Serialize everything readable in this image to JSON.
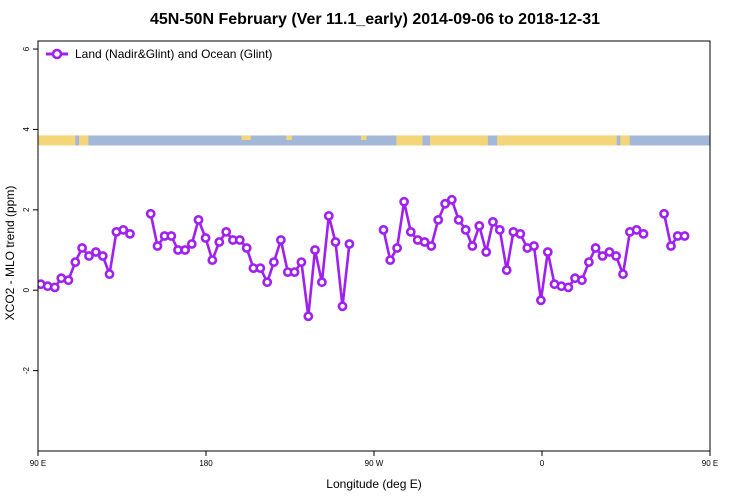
{
  "chart_data": {
    "type": "line",
    "title": "45N-50N February (Ver 11.1_early)   2014-09-06 to 2018-12-31",
    "xlabel": "Longitude (deg E)",
    "ylabel": "XCO2 - MLO trend (ppm)",
    "xlim": [
      90,
      450
    ],
    "ylim": [
      -4,
      6.2
    ],
    "x_ticks": [
      {
        "value": 90,
        "label": "90 E"
      },
      {
        "value": 180,
        "label": "180"
      },
      {
        "value": 270,
        "label": "90 W"
      },
      {
        "value": 360,
        "label": "0"
      },
      {
        "value": 450,
        "label": "90 E"
      },
      {
        "value": 540,
        "label": "180"
      }
    ],
    "y_ticks": [
      {
        "value": -2,
        "label": "-2"
      },
      {
        "value": 0,
        "label": "0"
      },
      {
        "value": 2,
        "label": "2"
      },
      {
        "value": 4,
        "label": "4"
      },
      {
        "value": 6,
        "label": "6"
      }
    ],
    "grid": false,
    "legend_position": "top-left",
    "landmask_band": {
      "ymin": 3.6,
      "ymax": 3.85,
      "land_color": "#F5D57A",
      "ocean_color": "#A3B7D9"
    },
    "series": [
      {
        "name": "Land (Nadir&Glint) and Ocean (Glint)",
        "color": "#A020F0",
        "points": [
          [
            91.5,
            0.15
          ],
          [
            95.2,
            0.1
          ],
          [
            99,
            0.07
          ],
          [
            102.5,
            0.3
          ],
          [
            106.3,
            0.25
          ],
          [
            110,
            0.7
          ],
          [
            113.6,
            1.05
          ],
          [
            117.3,
            0.85
          ],
          [
            121,
            0.95
          ],
          [
            124.7,
            0.85
          ],
          [
            128.3,
            0.4
          ],
          [
            132,
            1.45
          ],
          [
            135.7,
            1.5
          ],
          [
            139.3,
            1.4
          ],
          null,
          [
            150.4,
            1.9
          ],
          [
            154,
            1.1
          ],
          [
            157.8,
            1.35
          ],
          [
            161.4,
            1.35
          ],
          [
            165,
            1.0
          ],
          [
            168.8,
            1.0
          ],
          [
            172.4,
            1.15
          ],
          [
            176,
            1.75
          ],
          [
            179.8,
            1.3
          ],
          [
            183.4,
            0.75
          ],
          [
            187.1,
            1.2
          ],
          [
            190.8,
            1.45
          ],
          [
            194.4,
            1.25
          ],
          [
            198.1,
            1.25
          ],
          [
            201.8,
            1.05
          ],
          [
            205.4,
            0.55
          ],
          [
            209.1,
            0.55
          ],
          [
            212.8,
            0.2
          ],
          [
            216.4,
            0.7
          ],
          [
            220.1,
            1.25
          ],
          [
            223.8,
            0.45
          ],
          [
            227.4,
            0.45
          ],
          [
            231.1,
            0.7
          ],
          [
            234.8,
            -0.65
          ],
          [
            238.4,
            1.0
          ],
          [
            242.1,
            0.2
          ],
          [
            245.8,
            1.85
          ],
          [
            249.4,
            1.2
          ],
          [
            253.1,
            -0.4
          ],
          [
            256.8,
            1.15
          ],
          null,
          [
            275.1,
            1.5
          ],
          [
            278.7,
            0.75
          ],
          [
            282.4,
            1.05
          ],
          [
            286.1,
            2.2
          ],
          [
            289.7,
            1.45
          ],
          [
            293.4,
            1.25
          ],
          [
            297.1,
            1.2
          ],
          [
            300.7,
            1.1
          ],
          [
            304.4,
            1.75
          ],
          [
            308.1,
            2.15
          ],
          [
            311.7,
            2.25
          ],
          [
            315.4,
            1.75
          ],
          [
            319.1,
            1.5
          ],
          [
            322.7,
            1.1
          ],
          [
            326.4,
            1.6
          ],
          [
            330.1,
            0.95
          ],
          [
            333.7,
            1.7
          ],
          [
            337.4,
            1.5
          ],
          [
            341.1,
            0.5
          ],
          [
            344.7,
            1.45
          ],
          [
            348.4,
            1.4
          ],
          [
            352.1,
            1.05
          ],
          [
            355.7,
            1.1
          ],
          [
            359.4,
            -0.25
          ],
          [
            363.1,
            0.95
          ],
          [
            366.7,
            0.15
          ],
          [
            370.4,
            0.1
          ],
          [
            374.1,
            0.07
          ],
          [
            377.7,
            0.3
          ],
          [
            381.4,
            0.25
          ],
          [
            385.1,
            0.7
          ],
          [
            388.7,
            1.05
          ],
          [
            392.4,
            0.85
          ],
          [
            396.1,
            0.95
          ],
          [
            399.7,
            0.85
          ],
          [
            403.4,
            0.4
          ],
          [
            407.1,
            1.45
          ],
          [
            410.7,
            1.5
          ],
          [
            414.4,
            1.4
          ],
          null,
          [
            425.4,
            1.9
          ],
          [
            429.1,
            1.1
          ],
          [
            432.7,
            1.35
          ],
          [
            436.4,
            1.35
          ]
        ]
      }
    ]
  }
}
